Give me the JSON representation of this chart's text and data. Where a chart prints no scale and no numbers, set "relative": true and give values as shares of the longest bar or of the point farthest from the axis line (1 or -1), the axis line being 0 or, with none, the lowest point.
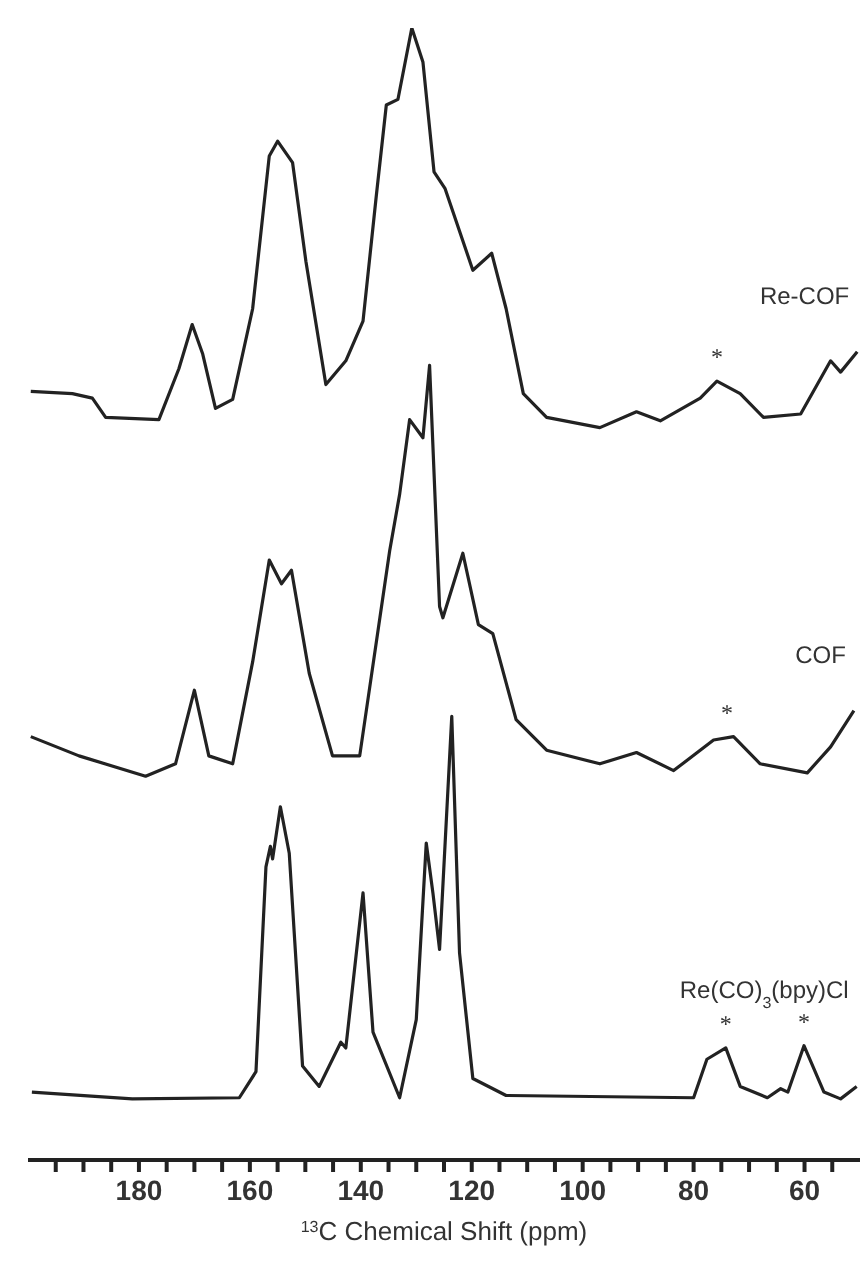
{
  "chart_data": {
    "type": "line",
    "relative": true,
    "xlabel": "$^{13}$C Chemical Shift (ppm)",
    "xlim": [
      200,
      50
    ],
    "xticks": [
      {
        "value": 195,
        "label": null
      },
      {
        "value": 190,
        "label": null
      },
      {
        "value": 185,
        "label": null
      },
      180,
      {
        "value": 175,
        "label": null
      },
      {
        "value": 170,
        "label": null
      },
      {
        "value": 165,
        "label": null
      },
      160,
      {
        "value": 155,
        "label": null
      },
      {
        "value": 150,
        "label": null
      },
      {
        "value": 145,
        "label": null
      },
      140,
      {
        "value": 135,
        "label": null
      },
      {
        "value": 130,
        "label": null
      },
      {
        "value": 125,
        "label": null
      },
      120,
      {
        "value": 115,
        "label": null
      },
      {
        "value": 110,
        "label": null
      },
      {
        "value": 105,
        "label": null
      },
      100,
      {
        "value": 95,
        "label": null
      },
      {
        "value": 90,
        "label": null
      },
      {
        "value": 85,
        "label": null
      },
      80,
      {
        "value": 75,
        "label": null
      },
      {
        "value": 70,
        "label": null
      },
      {
        "value": 65,
        "label": null
      },
      60,
      {
        "value": 55,
        "label": null
      }
    ],
    "grid": false,
    "marker": "none",
    "line_style": "solid",
    "series": [
      {
        "name": "Re-COF",
        "color": "#222222",
        "x": [
          199.5,
          192,
          188.4,
          186,
          176.4,
          172.8,
          170.4,
          168.5,
          166.2,
          163.1,
          159.5,
          156.5,
          155,
          152.3,
          149.9,
          146.3,
          142.7,
          139.6,
          137.2,
          135.4,
          133.3,
          130.8,
          128.8,
          126.8,
          124.8,
          119.8,
          116.4,
          113.8,
          110.7,
          106.5,
          96.9,
          90.3,
          86,
          78.8,
          75.8,
          71.6,
          67.4,
          60.7,
          55.3,
          53.5,
          50.5
        ],
        "values": [
          0.679,
          0.677,
          0.673,
          0.656,
          0.654,
          0.699,
          0.738,
          0.712,
          0.664,
          0.672,
          0.752,
          0.887,
          0.9,
          0.881,
          0.794,
          0.685,
          0.706,
          0.741,
          0.852,
          0.932,
          0.937,
          1,
          0.97,
          0.873,
          0.858,
          0.786,
          0.801,
          0.752,
          0.677,
          0.656,
          0.647,
          0.661,
          0.653,
          0.673,
          0.688,
          0.677,
          0.656,
          0.659,
          0.706,
          0.696,
          0.714
        ]
      },
      {
        "name": "COF",
        "color": "#222222",
        "x": [
          199.5,
          190.8,
          178.8,
          173.4,
          170,
          167.4,
          163.1,
          159.5,
          156.5,
          154.3,
          152.5,
          149.3,
          145.1,
          140.2,
          134.8,
          133,
          131.2,
          128.8,
          127.6,
          125.8,
          125.2,
          121.6,
          118.8,
          116.2,
          112,
          106.5,
          96.9,
          90.3,
          83.6,
          76.4,
          72.8,
          68,
          59.5,
          55.3,
          51.1
        ],
        "values": [
          0.374,
          0.357,
          0.339,
          0.35,
          0.415,
          0.357,
          0.35,
          0.44,
          0.53,
          0.509,
          0.521,
          0.43,
          0.357,
          0.357,
          0.538,
          0.588,
          0.654,
          0.638,
          0.702,
          0.489,
          0.479,
          0.536,
          0.473,
          0.465,
          0.389,
          0.362,
          0.35,
          0.36,
          0.344,
          0.371,
          0.374,
          0.35,
          0.342,
          0.365,
          0.397
        ]
      },
      {
        "name": "Re(CO)$_{3}$(bpy)Cl",
        "color": "#222222",
        "x": [
          199.3,
          181.2,
          161.9,
          158.9,
          157.1,
          156.3,
          155.9,
          154.5,
          152.9,
          150.5,
          147.5,
          145.1,
          143.6,
          142.7,
          139.6,
          137.8,
          133,
          130,
          128.2,
          127,
          125.8,
          123.6,
          122.2,
          119.8,
          113.8,
          80,
          77.6,
          74.2,
          71.6,
          66.7,
          64.3,
          63,
          60.1,
          56.5,
          53.5,
          50.6
        ],
        "values": [
          0.06,
          0.054,
          0.055,
          0.078,
          0.259,
          0.277,
          0.266,
          0.312,
          0.271,
          0.083,
          0.065,
          0.089,
          0.104,
          0.099,
          0.236,
          0.113,
          0.055,
          0.124,
          0.28,
          0.236,
          0.186,
          0.392,
          0.183,
          0.072,
          0.057,
          0.055,
          0.089,
          0.099,
          0.065,
          0.055,
          0.063,
          0.06,
          0.101,
          0.06,
          0.054,
          0.065
        ]
      }
    ],
    "annotations": [
      {
        "text": "*",
        "x": 75.8,
        "y": 0.688
      },
      {
        "text": "*",
        "x": 74,
        "y": 0.374
      },
      {
        "text": "*",
        "x": 74.2,
        "y": 0.099
      },
      {
        "text": "*",
        "x": 60.1,
        "y": 0.101
      }
    ]
  }
}
